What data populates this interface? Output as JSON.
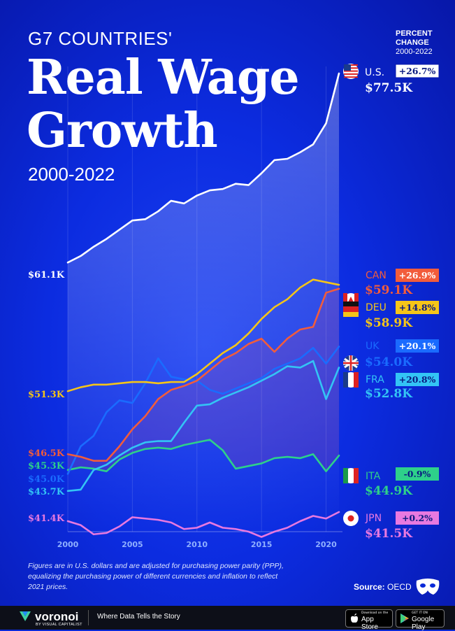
{
  "header": {
    "subtitle": "G7 COUNTRIES'",
    "title_line1": "Real Wage",
    "title_line2": "Growth",
    "years": "2000-2022",
    "pc_title": "PERCENT CHANGE",
    "pc_years": "2000-2022"
  },
  "colors": {
    "US": "#ffffff",
    "CAN": "#f25c3b",
    "DEU": "#f5c518",
    "UK": "#1a6bff",
    "FRA": "#33c4f5",
    "ITA": "#2ed08a",
    "JPN": "#e879e0"
  },
  "chart_data": {
    "type": "line",
    "x": [
      2000,
      2001,
      2002,
      2003,
      2004,
      2005,
      2006,
      2007,
      2008,
      2009,
      2010,
      2011,
      2012,
      2013,
      2014,
      2015,
      2016,
      2017,
      2018,
      2019,
      2020,
      2021
    ],
    "xticks": [
      "2000",
      "2005",
      "2010",
      "2015",
      "2020"
    ],
    "xlim": [
      2000,
      2022
    ],
    "ylim": [
      40,
      79
    ],
    "grid": true,
    "series": [
      {
        "name": "U.S.",
        "key": "US",
        "start_label": "$61.1K",
        "end_label": "$77.5K",
        "change": "+26.7%",
        "values": [
          61.1,
          61.6,
          62.3,
          62.9,
          63.6,
          64.3,
          64.4,
          65.0,
          65.8,
          65.6,
          66.2,
          66.6,
          66.7,
          67.1,
          67.0,
          67.9,
          68.9,
          69.0,
          69.5,
          70.1,
          71.7,
          75.5
        ]
      },
      {
        "name": "CAN",
        "key": "CAN",
        "start_label": "$46.5K",
        "end_label": "$59.1K",
        "change": "+26.9%",
        "values": [
          46.5,
          46.3,
          46.0,
          46.0,
          47.1,
          48.4,
          49.4,
          50.7,
          51.4,
          51.7,
          52.1,
          52.9,
          53.7,
          54.2,
          54.9,
          55.3,
          54.3,
          55.3,
          56.0,
          56.2,
          58.8,
          59.1
        ]
      },
      {
        "name": "DEU",
        "key": "DEU",
        "start_label": "$51.3K",
        "end_label": "$58.9K",
        "change": "+14.8%",
        "values": [
          51.3,
          51.6,
          51.8,
          51.8,
          51.9,
          52.0,
          52.0,
          51.9,
          52.0,
          52.0,
          52.6,
          53.4,
          54.2,
          54.8,
          55.7,
          56.8,
          57.7,
          58.3,
          59.2,
          59.8,
          59.6,
          59.4
        ]
      },
      {
        "name": "UK",
        "key": "UK",
        "start_label": "$45.0K",
        "end_label": "$54.0K",
        "change": "+20.1%",
        "values": [
          45.0,
          47.1,
          47.9,
          49.7,
          50.6,
          50.4,
          51.9,
          53.8,
          52.4,
          52.2,
          52.1,
          51.4,
          51.1,
          51.5,
          51.9,
          52.3,
          53.0,
          53.4,
          53.8,
          54.6,
          53.4,
          54.7
        ]
      },
      {
        "name": "FRA",
        "key": "FRA",
        "start_label": "$43.7K",
        "end_label": "$52.8K",
        "change": "+20.8%",
        "values": [
          43.7,
          43.8,
          45.3,
          45.7,
          46.4,
          47.0,
          47.4,
          47.5,
          47.5,
          48.9,
          50.2,
          50.3,
          50.8,
          51.2,
          51.6,
          52.1,
          52.6,
          53.2,
          53.1,
          53.6,
          50.7,
          53.1
        ]
      },
      {
        "name": "ITA",
        "key": "ITA",
        "start_label": "$45.3K",
        "end_label": "$44.9K",
        "change": "-0.9%",
        "values": [
          45.3,
          45.5,
          45.4,
          45.2,
          46.1,
          46.6,
          46.9,
          47.0,
          46.9,
          47.2,
          47.4,
          47.6,
          46.8,
          45.4,
          45.6,
          45.8,
          46.2,
          46.3,
          46.2,
          46.5,
          45.2,
          46.4
        ]
      },
      {
        "name": "JPN",
        "key": "JPN",
        "start_label": "$41.4K",
        "end_label": "$41.5K",
        "change": "+0.2%",
        "values": [
          41.4,
          41.1,
          40.4,
          40.5,
          41.0,
          41.7,
          41.6,
          41.5,
          41.3,
          40.8,
          40.9,
          41.3,
          40.9,
          40.8,
          40.6,
          40.2,
          40.6,
          40.9,
          41.4,
          41.8,
          41.6,
          42.1
        ]
      }
    ]
  },
  "footer": {
    "footnote": "Figures are in U.S. dollars and are adjusted for purchasing power parity (PPP), equalizing the purchasing power of different currencies and inflation to reflect 2021 prices.",
    "source_label": "Source:",
    "source_value": "OECD",
    "logo_name": "voronoi",
    "logo_by": "BY VISUAL CAPITALIST",
    "tagline": "Where Data Tells the Story",
    "appstore_small": "Download on the",
    "appstore_big": "App Store",
    "gplay_small": "GET IT ON",
    "gplay_big": "Google Play"
  }
}
